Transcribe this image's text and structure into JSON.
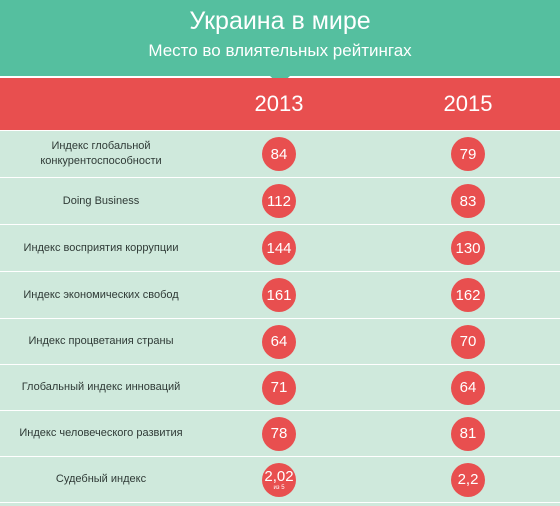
{
  "header": {
    "title": "Украина в мире",
    "subtitle": "Место во влиятельных рейтингах"
  },
  "years": [
    "2013",
    "2015"
  ],
  "rows": [
    {
      "label": "Индекс глобальной конкурентоспособности",
      "v2013": "84",
      "v2015": "79"
    },
    {
      "label": "Doing Business",
      "v2013": "112",
      "v2015": "83"
    },
    {
      "label": "Индекс восприятия коррупции",
      "v2013": "144",
      "v2015": "130"
    },
    {
      "label": "Индекс экономических свобод",
      "v2013": "161",
      "v2015": "162"
    },
    {
      "label": "Индекс процветания страны",
      "v2013": "64",
      "v2015": "70"
    },
    {
      "label": "Глобальный индекс инноваций",
      "v2013": "71",
      "v2015": "64"
    },
    {
      "label": "Индекс человеческого развития",
      "v2013": "78",
      "v2015": "81"
    },
    {
      "label": "Судебный индекс",
      "v2013": "2,02",
      "v2013_note": "из 5",
      "v2015": "2,2"
    }
  ],
  "colors": {
    "header_green": "#55bf9f",
    "accent_red": "#e84f4f",
    "row_bg": "#cfe9dc"
  }
}
